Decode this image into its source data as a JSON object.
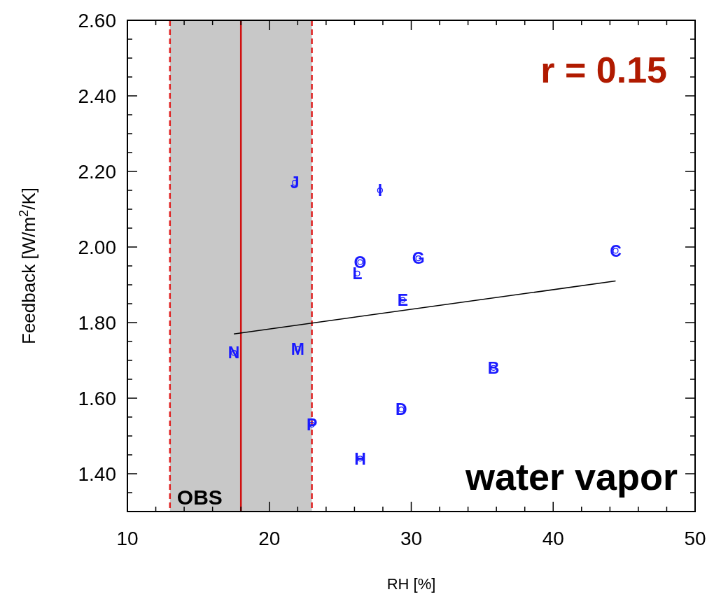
{
  "chart_data": {
    "type": "scatter",
    "xlabel": "RH [%]",
    "ylabel": "Feedback [W/m$^{2}$/K]",
    "xlim": [
      10,
      50
    ],
    "ylim": [
      1.3,
      2.6
    ],
    "xticks": [
      10,
      {
        "value": 12,
        "label": null
      },
      {
        "value": 14,
        "label": null
      },
      {
        "value": 16,
        "label": null
      },
      {
        "value": 18,
        "label": null
      },
      20,
      {
        "value": 22,
        "label": null
      },
      {
        "value": 24,
        "label": null
      },
      {
        "value": 26,
        "label": null
      },
      {
        "value": 28,
        "label": null
      },
      30,
      {
        "value": 32,
        "label": null
      },
      {
        "value": 34,
        "label": null
      },
      {
        "value": 36,
        "label": null
      },
      {
        "value": 38,
        "label": null
      },
      40,
      {
        "value": 42,
        "label": null
      },
      {
        "value": 44,
        "label": null
      },
      {
        "value": 46,
        "label": null
      },
      {
        "value": 48,
        "label": null
      },
      50
    ],
    "yticks": [
      {
        "value": 1.35,
        "label": null
      },
      {
        "value": 1.4,
        "label": "1.40"
      },
      {
        "value": 1.45,
        "label": null
      },
      {
        "value": 1.5,
        "label": null
      },
      {
        "value": 1.55,
        "label": null
      },
      {
        "value": 1.6,
        "label": "1.60"
      },
      {
        "value": 1.65,
        "label": null
      },
      {
        "value": 1.7,
        "label": null
      },
      {
        "value": 1.75,
        "label": null
      },
      {
        "value": 1.8,
        "label": "1.80"
      },
      {
        "value": 1.85,
        "label": null
      },
      {
        "value": 1.9,
        "label": null
      },
      {
        "value": 1.95,
        "label": null
      },
      {
        "value": 2.0,
        "label": "2.00"
      },
      {
        "value": 2.05,
        "label": null
      },
      {
        "value": 2.1,
        "label": null
      },
      {
        "value": 2.15,
        "label": null
      },
      {
        "value": 2.2,
        "label": "2.20"
      },
      {
        "value": 2.25,
        "label": null
      },
      {
        "value": 2.3,
        "label": null
      },
      {
        "value": 2.35,
        "label": null
      },
      {
        "value": 2.4,
        "label": "2.40"
      },
      {
        "value": 2.45,
        "label": null
      },
      {
        "value": 2.5,
        "label": null
      },
      {
        "value": 2.55,
        "label": null
      },
      {
        "value": 2.6,
        "label": "2.60"
      }
    ],
    "grid": false,
    "legend": false,
    "marker": "circle",
    "bands": [
      {
        "axis": "x",
        "from": 13,
        "to": 23,
        "label": "OBS",
        "color": "#c8c8c8"
      }
    ],
    "ref_lines": [
      {
        "axis": "x",
        "value": 13,
        "color": "#e02020",
        "line_style": "dashed"
      },
      {
        "axis": "x",
        "value": 18,
        "color": "#d01010",
        "line_style": "solid"
      },
      {
        "axis": "x",
        "value": 23,
        "color": "#e02020",
        "line_style": "dashed"
      }
    ],
    "annotations": [
      "r = 0.15",
      "water vapor"
    ],
    "series": [
      {
        "name": "J",
        "color": "#1a1aff",
        "x": [
          21.8
        ],
        "values": [
          2.17
        ]
      },
      {
        "name": "I",
        "color": "#1a1aff",
        "x": [
          27.8
        ],
        "values": [
          2.15
        ]
      },
      {
        "name": "O",
        "color": "#1a1aff",
        "x": [
          26.4
        ],
        "values": [
          1.96
        ]
      },
      {
        "name": "L",
        "color": "#1a1aff",
        "x": [
          26.2
        ],
        "values": [
          1.93
        ]
      },
      {
        "name": "G",
        "color": "#1a1aff",
        "x": [
          30.5
        ],
        "values": [
          1.97
        ]
      },
      {
        "name": "C",
        "color": "#1a1aff",
        "x": [
          44.4
        ],
        "values": [
          1.99
        ]
      },
      {
        "name": "E",
        "color": "#1a1aff",
        "x": [
          29.4
        ],
        "values": [
          1.86
        ]
      },
      {
        "name": "N",
        "color": "#1a1aff",
        "x": [
          17.5
        ],
        "values": [
          1.72
        ]
      },
      {
        "name": "M",
        "color": "#1a1aff",
        "x": [
          22.0
        ],
        "values": [
          1.73
        ]
      },
      {
        "name": "B",
        "color": "#1a1aff",
        "x": [
          35.8
        ],
        "values": [
          1.68
        ]
      },
      {
        "name": "D",
        "color": "#1a1aff",
        "x": [
          29.3
        ],
        "values": [
          1.57
        ]
      },
      {
        "name": "P",
        "color": "#1a1aff",
        "x": [
          23.0
        ],
        "values": [
          1.53
        ]
      },
      {
        "name": "H",
        "color": "#1a1aff",
        "x": [
          26.4
        ],
        "values": [
          1.44
        ]
      },
      {
        "type": "line",
        "marker": "none",
        "color": "#000000",
        "x": [
          17.5,
          44.4
        ],
        "values": [
          1.77,
          1.91
        ]
      }
    ]
  }
}
